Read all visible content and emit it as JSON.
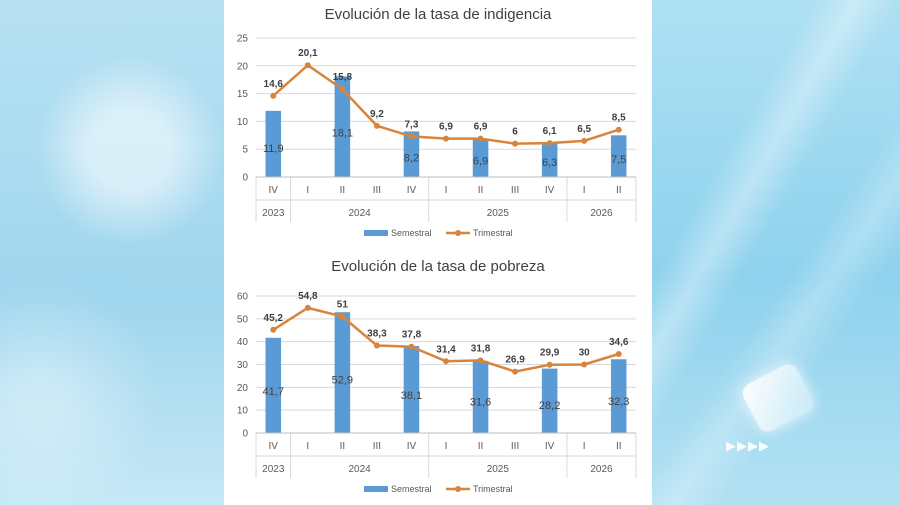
{
  "chart_data": [
    {
      "type": "bar+line",
      "title": "Evolución de la tasa de indigencia",
      "ylim": [
        0,
        25
      ],
      "yticks": [
        0,
        5,
        10,
        15,
        20,
        25
      ],
      "grid": true,
      "legend_position": "bottom",
      "categories": [
        "IV",
        "I",
        "II",
        "III",
        "IV",
        "I",
        "II",
        "III",
        "IV",
        "I",
        "II"
      ],
      "years": [
        {
          "label": "2023",
          "span": 1
        },
        {
          "label": "2024",
          "span": 4
        },
        {
          "label": "2025",
          "span": 4
        },
        {
          "label": "2026",
          "span": 2
        }
      ],
      "series": [
        {
          "name": "Semestral",
          "type": "bar",
          "color": "#5b9bd5",
          "values": [
            11.9,
            null,
            18.1,
            null,
            8.2,
            null,
            6.9,
            null,
            6.3,
            null,
            7.5
          ],
          "labels": [
            "11,9",
            "",
            "18,1",
            "",
            "8,2",
            "",
            "6,9",
            "",
            "6,3",
            "",
            "7,5"
          ]
        },
        {
          "name": "Trimestral",
          "type": "line",
          "color": "#d9843b",
          "values": [
            14.6,
            20.1,
            15.8,
            9.2,
            7.3,
            6.9,
            6.9,
            6,
            6.1,
            6.5,
            8.5
          ],
          "labels": [
            "14,6",
            "20,1",
            "15,8",
            "9,2",
            "7,3",
            "6,9",
            "6,9",
            "6",
            "6,1",
            "6,5",
            "8,5"
          ]
        }
      ]
    },
    {
      "type": "bar+line",
      "title": "Evolución de la tasa de pobreza",
      "ylim": [
        0,
        60
      ],
      "yticks": [
        0,
        10,
        20,
        30,
        40,
        50,
        60
      ],
      "grid": true,
      "legend_position": "bottom",
      "categories": [
        "IV",
        "I",
        "II",
        "III",
        "IV",
        "I",
        "II",
        "III",
        "IV",
        "I",
        "II"
      ],
      "years": [
        {
          "label": "2023",
          "span": 1
        },
        {
          "label": "2024",
          "span": 4
        },
        {
          "label": "2025",
          "span": 4
        },
        {
          "label": "2026",
          "span": 2
        }
      ],
      "series": [
        {
          "name": "Semestral",
          "type": "bar",
          "color": "#5b9bd5",
          "values": [
            41.7,
            null,
            52.9,
            null,
            38.1,
            null,
            31.6,
            null,
            28.2,
            null,
            32.3
          ],
          "labels": [
            "41,7",
            "",
            "52,9",
            "",
            "38,1",
            "",
            "31,6",
            "",
            "28,2",
            "",
            "32,3"
          ]
        },
        {
          "name": "Trimestral",
          "type": "line",
          "color": "#d9843b",
          "values": [
            45.2,
            54.8,
            51,
            38.3,
            37.8,
            31.4,
            31.8,
            26.9,
            29.9,
            30,
            34.6
          ],
          "labels": [
            "45,2",
            "54,8",
            "51",
            "38,3",
            "37,8",
            "31,4",
            "31,8",
            "26,9",
            "29,9",
            "30",
            "34,6"
          ]
        }
      ]
    }
  ]
}
